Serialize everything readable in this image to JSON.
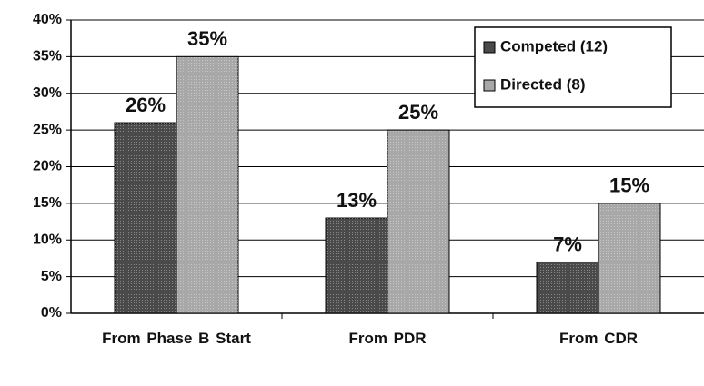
{
  "chart_data": {
    "type": "bar",
    "categories": [
      "From Phase B Start",
      "From PDR",
      "From CDR"
    ],
    "series": [
      {
        "name": "Competed (12)",
        "color": "#4a4a4a",
        "values": [
          26,
          13,
          7
        ],
        "value_labels": [
          "26%",
          "13%",
          "7%"
        ]
      },
      {
        "name": "Directed (8)",
        "color": "#a8a8a8",
        "values": [
          35,
          25,
          15
        ],
        "value_labels": [
          "35%",
          "25%",
          "15%"
        ]
      }
    ],
    "ylim": [
      0,
      40
    ],
    "yticks": [
      {
        "value": 0,
        "label": "0%"
      },
      {
        "value": 5,
        "label": "5%"
      },
      {
        "value": 10,
        "label": "10%"
      },
      {
        "value": 15,
        "label": "15%"
      },
      {
        "value": 20,
        "label": "20%"
      },
      {
        "value": 25,
        "label": "25%"
      },
      {
        "value": 30,
        "label": "30%"
      },
      {
        "value": 35,
        "label": "35%"
      },
      {
        "value": 40,
        "label": "40%"
      }
    ],
    "grid": true,
    "legend": "upper right"
  }
}
